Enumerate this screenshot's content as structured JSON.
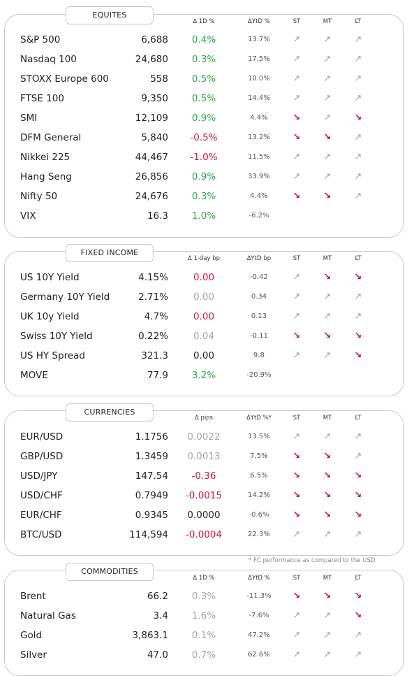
{
  "colors": {
    "positive": "#2aa84a",
    "negative": "#d4143c",
    "neutral": "#a6a6a6",
    "arrow_up": "#b39a8e",
    "arrow_down": "#c8102e"
  },
  "icons": {
    "up": "arrow-up-right-icon",
    "down": "arrow-down-right-icon"
  },
  "glyphs": {
    "up": "↗",
    "down": "↘"
  },
  "footnote": "* FC performance as compared to the USD",
  "sections": [
    {
      "title": "EQUITES",
      "headers": {
        "d1": "Δ 1D %",
        "ytd": "ΔYtD %",
        "st": "ST",
        "mt": "MT",
        "lt": "LT"
      },
      "rows": [
        {
          "name": "S&P 500",
          "value": "6,688",
          "d1": "0.4%",
          "d1_tone": "pos",
          "ytd": "13.7%",
          "st": "up",
          "mt": "up",
          "lt": "up"
        },
        {
          "name": "Nasdaq 100",
          "value": "24,680",
          "d1": "0.3%",
          "d1_tone": "pos",
          "ytd": "17.5%",
          "st": "up",
          "mt": "up",
          "lt": "up"
        },
        {
          "name": "STOXX Europe 600",
          "value": "558",
          "d1": "0.5%",
          "d1_tone": "pos",
          "ytd": "10.0%",
          "st": "up",
          "mt": "up",
          "lt": "up"
        },
        {
          "name": "FTSE 100",
          "value": "9,350",
          "d1": "0.5%",
          "d1_tone": "pos",
          "ytd": "14.4%",
          "st": "up",
          "mt": "up",
          "lt": "up"
        },
        {
          "name": "SMI",
          "value": "12,109",
          "d1": "0.9%",
          "d1_tone": "pos",
          "ytd": "4.4%",
          "st": "down",
          "mt": "up",
          "lt": "down"
        },
        {
          "name": "DFM General",
          "value": "5,840",
          "d1": "-0.5%",
          "d1_tone": "neg",
          "ytd": "13.2%",
          "st": "down",
          "mt": "down",
          "lt": "up"
        },
        {
          "name": "Nikkei 225",
          "value": "44,467",
          "d1": "-1.0%",
          "d1_tone": "neg",
          "ytd": "11.5%",
          "st": "up",
          "mt": "up",
          "lt": "up"
        },
        {
          "name": "Hang Seng",
          "value": "26,856",
          "d1": "0.9%",
          "d1_tone": "pos",
          "ytd": "33.9%",
          "st": "up",
          "mt": "up",
          "lt": "up"
        },
        {
          "name": "Nifty  50",
          "value": "24,676",
          "d1": "0.3%",
          "d1_tone": "pos",
          "ytd": "4.4%",
          "st": "down",
          "mt": "down",
          "lt": "up"
        },
        {
          "name": "VIX",
          "value": "16.3",
          "d1": "1.0%",
          "d1_tone": "pos",
          "ytd": "-6.2%",
          "st": "",
          "mt": "",
          "lt": ""
        }
      ]
    },
    {
      "title": "FIXED INCOME",
      "headers": {
        "d1": "Δ 1-day bp",
        "ytd": "ΔYtD bp",
        "st": "ST",
        "mt": "MT",
        "lt": "LT"
      },
      "rows": [
        {
          "name": "US 10Y Yield",
          "value": "4.15%",
          "d1": "0.00",
          "d1_tone": "neg",
          "ytd": "-0.42",
          "st": "up",
          "mt": "down",
          "lt": "down"
        },
        {
          "name": "Germany 10Y Yield",
          "value": "2.71%",
          "d1": "0.00",
          "d1_tone": "neu",
          "ytd": "0.34",
          "st": "up",
          "mt": "up",
          "lt": "up"
        },
        {
          "name": "UK 10y Yield",
          "value": "4.7%",
          "d1": "0.00",
          "d1_tone": "neg",
          "ytd": "0.13",
          "st": "up",
          "mt": "up",
          "lt": "up"
        },
        {
          "name": "Swiss 10Y Yield",
          "value": "0.22%",
          "d1": "0.04",
          "d1_tone": "neu",
          "ytd": "-0.11",
          "st": "down",
          "mt": "down",
          "lt": "down"
        },
        {
          "name": "US HY Spread",
          "value": "321.3",
          "d1": "0.00",
          "d1_tone": "blk",
          "ytd": "9.8",
          "st": "up",
          "mt": "up",
          "lt": "down"
        },
        {
          "name": "MOVE",
          "value": "77.9",
          "d1": "3.2%",
          "d1_tone": "pos",
          "ytd": "-20.9%",
          "st": "",
          "mt": "",
          "lt": ""
        }
      ]
    },
    {
      "title": "CURRENCIES",
      "headers": {
        "d1": "Δ pips",
        "ytd": "ΔYtD %*",
        "st": "ST",
        "mt": "MT",
        "lt": "LT"
      },
      "rows": [
        {
          "name": "EUR/USD",
          "value": "1.1756",
          "d1": "0.0022",
          "d1_tone": "neu",
          "ytd": "13.5%",
          "st": "up",
          "mt": "up",
          "lt": "up"
        },
        {
          "name": "GBP/USD",
          "value": "1.3459",
          "d1": "0.0013",
          "d1_tone": "neu",
          "ytd": "7.5%",
          "st": "down",
          "mt": "down",
          "lt": "up"
        },
        {
          "name": "USD/JPY",
          "value": "147.54",
          "d1": "-0.36",
          "d1_tone": "neg",
          "ytd": "6.5%",
          "st": "down",
          "mt": "down",
          "lt": "down"
        },
        {
          "name": "USD/CHF",
          "value": "0.7949",
          "d1": "-0.0015",
          "d1_tone": "neg",
          "ytd": "14.2%",
          "st": "down",
          "mt": "down",
          "lt": "down"
        },
        {
          "name": "EUR/CHF",
          "value": "0.9345",
          "d1": "0.0000",
          "d1_tone": "blk",
          "ytd": "-0.6%",
          "st": "down",
          "mt": "down",
          "lt": "down"
        },
        {
          "name": "BTC/USD",
          "value": "114,594",
          "d1": "-0.0004",
          "d1_tone": "neg",
          "ytd": "22.3%",
          "st": "up",
          "mt": "up",
          "lt": "up"
        }
      ]
    },
    {
      "title": "COMMODITIES",
      "headers": {
        "d1": "Δ 1D %",
        "ytd": "ΔYtD %",
        "st": "ST",
        "mt": "MT",
        "lt": "LT"
      },
      "rows": [
        {
          "name": "Brent",
          "value": "66.2",
          "d1": "0.3%",
          "d1_tone": "neu",
          "ytd": "-11.3%",
          "st": "down",
          "mt": "down",
          "lt": "down"
        },
        {
          "name": "Natural Gas",
          "value": "3.4",
          "d1": "1.6%",
          "d1_tone": "neu",
          "ytd": "-7.6%",
          "st": "up",
          "mt": "up",
          "lt": "down"
        },
        {
          "name": "Gold",
          "value": "3,863.1",
          "d1": "0.1%",
          "d1_tone": "neu",
          "ytd": "47.2%",
          "st": "up",
          "mt": "up",
          "lt": "up"
        },
        {
          "name": "Silver",
          "value": "47.0",
          "d1": "0.7%",
          "d1_tone": "neu",
          "ytd": "62.6%",
          "st": "up",
          "mt": "up",
          "lt": "up"
        }
      ]
    }
  ]
}
